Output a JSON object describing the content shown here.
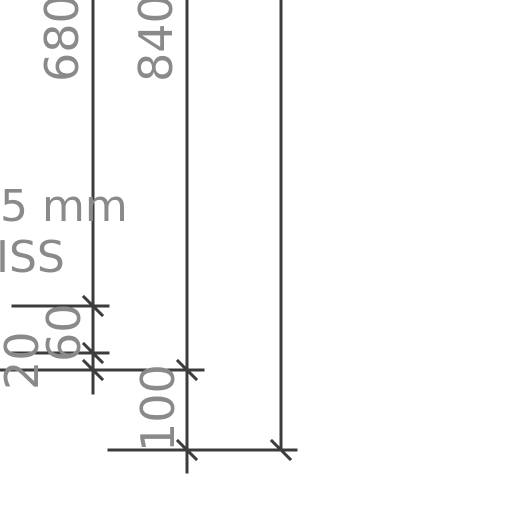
{
  "drawing": {
    "line_color": "#3c3c3c",
    "text_color": "#8a8a8a",
    "dimensions": {
      "d680": "680",
      "d840": "840",
      "d100": "100",
      "d20": "20",
      "d60": "60"
    },
    "notes": {
      "thickness": "5 mm",
      "material_fragment": "ISS",
      "edge_mark": "-"
    }
  }
}
